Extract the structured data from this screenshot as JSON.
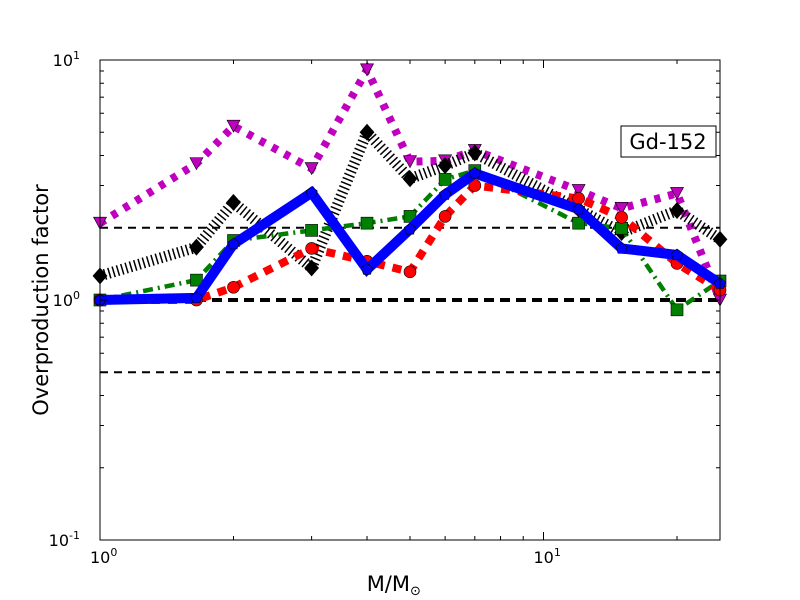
{
  "chart_data": {
    "type": "line",
    "title": "",
    "xlabel": "M/M",
    "xlabel_sub": "⊙",
    "ylabel": "Overproduction factor",
    "xscale": "log",
    "yscale": "log",
    "xlim": [
      1,
      25
    ],
    "ylim": [
      0.1,
      10
    ],
    "x_ticks": [
      {
        "value": 1,
        "base": "10",
        "exp": "0"
      },
      {
        "value": 10,
        "base": "10",
        "exp": "1"
      }
    ],
    "y_ticks": [
      {
        "value": 0.1,
        "base": "10",
        "exp": "-1"
      },
      {
        "value": 1,
        "base": "10",
        "exp": "0"
      },
      {
        "value": 10,
        "base": "10",
        "exp": "1"
      }
    ],
    "annotation": "Gd-152",
    "reference_lines": [
      2,
      1,
      0.5
    ],
    "x": [
      1,
      1.65,
      2,
      3,
      4,
      5,
      6,
      7,
      12,
      15,
      20,
      25
    ],
    "series": [
      {
        "name": "magenta",
        "color": "#bf00bf",
        "marker": "triangle-down",
        "style": "dotted",
        "values": [
          2.09,
          3.7,
          5.3,
          3.53,
          9.1,
          3.77,
          3.8,
          4.2,
          2.86,
          2.41,
          2.78,
          1.0
        ]
      },
      {
        "name": "black",
        "color": "#000000",
        "marker": "diamond",
        "style": "hatched",
        "values": [
          1.26,
          1.66,
          2.55,
          1.36,
          5.0,
          3.2,
          3.63,
          4.1,
          2.39,
          1.91,
          2.36,
          1.79
        ]
      },
      {
        "name": "green",
        "color": "#007f00",
        "marker": "square",
        "style": "dashdot",
        "values": [
          1.0,
          1.21,
          1.77,
          1.95,
          2.09,
          2.23,
          3.18,
          3.46,
          2.09,
          1.99,
          0.91,
          1.2
        ]
      },
      {
        "name": "red",
        "color": "#ff0000",
        "marker": "circle",
        "style": "dashed",
        "values": [
          1.0,
          1.0,
          1.13,
          1.64,
          1.45,
          1.31,
          2.23,
          3.0,
          2.65,
          2.21,
          1.42,
          1.1
        ]
      },
      {
        "name": "blue",
        "color": "#0000ff",
        "marker": "pentagon",
        "style": "solid",
        "values": [
          1.0,
          1.02,
          1.71,
          2.8,
          1.34,
          1.97,
          2.75,
          3.37,
          2.39,
          1.64,
          1.54,
          1.17
        ]
      }
    ]
  }
}
